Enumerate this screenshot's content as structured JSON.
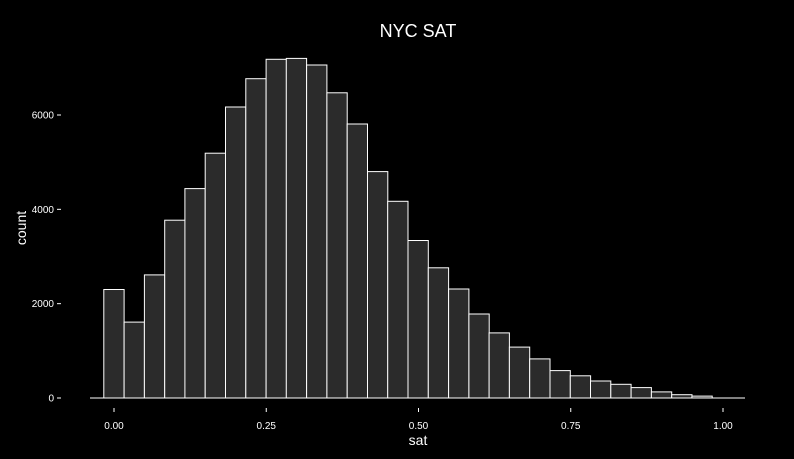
{
  "chart_data": {
    "type": "bar",
    "title": "NYC SAT",
    "xlabel": "sat",
    "ylabel": "count",
    "xlim": [
      -0.035,
      1.035
    ],
    "ylim": [
      0,
      7500
    ],
    "bin_start": -0.0167,
    "bin_width": 0.0333,
    "values": [
      2300,
      1610,
      2610,
      3770,
      4440,
      5190,
      6170,
      6770,
      7180,
      7200,
      7060,
      6470,
      5810,
      4800,
      4170,
      3340,
      2760,
      2310,
      1780,
      1380,
      1080,
      830,
      580,
      470,
      360,
      290,
      220,
      130,
      70,
      40
    ],
    "x_ticks": [
      0.0,
      0.25,
      0.5,
      0.75,
      1.0
    ],
    "x_tick_labels": [
      "0.00",
      "0.25",
      "0.50",
      "0.75",
      "1.00"
    ],
    "y_ticks": [
      0,
      2000,
      4000,
      6000
    ],
    "y_tick_labels": [
      "0",
      "2000",
      "4000",
      "6000"
    ],
    "colors": {
      "background": "#000000",
      "bar_fill": "#2b2b2b",
      "bar_stroke": "#ffffff",
      "text": "#ffffff"
    }
  }
}
